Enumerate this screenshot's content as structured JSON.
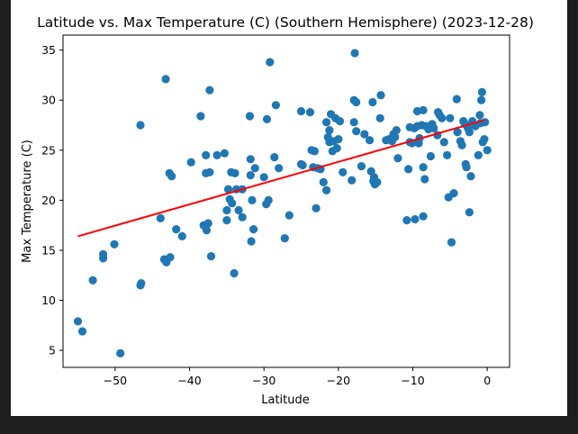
{
  "chart_data": {
    "type": "scatter",
    "title": "Latitude vs. Max Temperature (C) (Southern Hemisphere) (2023-12-28)",
    "xlabel": "Latitude",
    "ylabel": "Max Temperature (C)",
    "xlim": [
      -57,
      3
    ],
    "ylim": [
      3.3,
      36.5
    ],
    "xticks": [
      -50,
      -40,
      -30,
      -20,
      -10,
      0
    ],
    "xtick_labels": [
      "−50",
      "−40",
      "−30",
      "−20",
      "−10",
      "0"
    ],
    "yticks": [
      5,
      10,
      15,
      20,
      25,
      30,
      35
    ],
    "ytick_labels": [
      "5",
      "10",
      "15",
      "20",
      "25",
      "30",
      "35"
    ],
    "grid": false,
    "point_color": "#1f77b4",
    "regression_color": "#ff0000",
    "regression": {
      "x": [
        -55,
        -0.4
      ],
      "y": [
        16.4,
        28.0
      ]
    },
    "points": [
      [
        -55.0,
        7.9
      ],
      [
        -54.4,
        6.9
      ],
      [
        -53.0,
        12.0
      ],
      [
        -51.6,
        14.6
      ],
      [
        -51.6,
        14.2
      ],
      [
        -50.1,
        15.6
      ],
      [
        -49.3,
        4.7
      ],
      [
        -46.6,
        11.5
      ],
      [
        -46.5,
        11.7
      ],
      [
        -46.6,
        27.5
      ],
      [
        -43.9,
        18.2
      ],
      [
        -43.4,
        14.1
      ],
      [
        -43.1,
        13.8
      ],
      [
        -42.6,
        14.3
      ],
      [
        -42.7,
        22.7
      ],
      [
        -42.4,
        22.4
      ],
      [
        -43.2,
        32.1
      ],
      [
        -41.8,
        17.1
      ],
      [
        -41.0,
        16.4
      ],
      [
        -39.8,
        23.8
      ],
      [
        -38.5,
        28.4
      ],
      [
        -38.1,
        17.5
      ],
      [
        -37.7,
        17.0
      ],
      [
        -37.5,
        17.7
      ],
      [
        -37.8,
        22.7
      ],
      [
        -37.8,
        24.5
      ],
      [
        -37.3,
        22.8
      ],
      [
        -37.1,
        14.4
      ],
      [
        -37.3,
        31.0
      ],
      [
        -36.3,
        24.5
      ],
      [
        -35.3,
        24.7
      ],
      [
        -35.0,
        18.0
      ],
      [
        -35.0,
        19.0
      ],
      [
        -34.8,
        21.1
      ],
      [
        -34.6,
        20.1
      ],
      [
        -34.3,
        19.7
      ],
      [
        -34.4,
        22.8
      ],
      [
        -33.9,
        22.7
      ],
      [
        -33.7,
        21.1
      ],
      [
        -34.0,
        12.7
      ],
      [
        -33.4,
        19.0
      ],
      [
        -32.9,
        18.3
      ],
      [
        -32.9,
        21.1
      ],
      [
        -31.9,
        28.4
      ],
      [
        -31.8,
        22.5
      ],
      [
        -31.8,
        24.1
      ],
      [
        -31.7,
        15.9
      ],
      [
        -31.6,
        20.0
      ],
      [
        -31.4,
        17.1
      ],
      [
        -31.2,
        23.2
      ],
      [
        -30.0,
        22.3
      ],
      [
        -29.7,
        19.6
      ],
      [
        -29.4,
        20.0
      ],
      [
        -29.6,
        28.1
      ],
      [
        -29.2,
        33.8
      ],
      [
        -28.6,
        24.3
      ],
      [
        -28.4,
        29.5
      ],
      [
        -28.0,
        23.2
      ],
      [
        -27.2,
        16.2
      ],
      [
        -26.6,
        18.5
      ],
      [
        -25.0,
        28.9
      ],
      [
        -25.0,
        23.6
      ],
      [
        -24.8,
        23.5
      ],
      [
        -23.8,
        28.8
      ],
      [
        -23.6,
        25.0
      ],
      [
        -23.4,
        23.3
      ],
      [
        -23.2,
        24.9
      ],
      [
        -23.0,
        19.2
      ],
      [
        -22.8,
        23.2
      ],
      [
        -22.4,
        23.1
      ],
      [
        -22.0,
        21.8
      ],
      [
        -21.6,
        21.0
      ],
      [
        -21.6,
        27.8
      ],
      [
        -21.4,
        26.3
      ],
      [
        -21.2,
        25.8
      ],
      [
        -21.2,
        27.0
      ],
      [
        -21.0,
        28.6
      ],
      [
        -20.8,
        24.9
      ],
      [
        -20.6,
        25.9
      ],
      [
        -20.4,
        28.2
      ],
      [
        -20.2,
        25.2
      ],
      [
        -20.0,
        26.1
      ],
      [
        -19.8,
        27.9
      ],
      [
        -19.4,
        22.8
      ],
      [
        -18.2,
        22.0
      ],
      [
        -17.9,
        27.8
      ],
      [
        -17.9,
        30.0
      ],
      [
        -17.6,
        29.8
      ],
      [
        -17.8,
        34.7
      ],
      [
        -17.6,
        26.9
      ],
      [
        -16.9,
        23.4
      ],
      [
        -16.5,
        26.6
      ],
      [
        -15.8,
        26.0
      ],
      [
        -15.6,
        22.9
      ],
      [
        -15.4,
        29.8
      ],
      [
        -15.2,
        22.3
      ],
      [
        -15.3,
        21.9
      ],
      [
        -15.1,
        21.6
      ],
      [
        -14.8,
        21.8
      ],
      [
        -14.4,
        28.2
      ],
      [
        -14.3,
        30.5
      ],
      [
        -13.6,
        26.0
      ],
      [
        -13.2,
        26.1
      ],
      [
        -12.8,
        25.9
      ],
      [
        -12.6,
        26.6
      ],
      [
        -12.4,
        26.3
      ],
      [
        -12.2,
        27.0
      ],
      [
        -12.0,
        24.2
      ],
      [
        -10.8,
        18.0
      ],
      [
        -10.6,
        23.1
      ],
      [
        -10.4,
        27.3
      ],
      [
        -10.4,
        25.8
      ],
      [
        -10.1,
        25.7
      ],
      [
        -9.8,
        27.2
      ],
      [
        -9.7,
        18.1
      ],
      [
        -9.4,
        28.9
      ],
      [
        -9.4,
        27.4
      ],
      [
        -9.2,
        25.7
      ],
      [
        -9.1,
        26.2
      ],
      [
        -8.8,
        27.5
      ],
      [
        -8.6,
        18.4
      ],
      [
        -8.6,
        23.3
      ],
      [
        -8.4,
        22.1
      ],
      [
        -8.6,
        29.0
      ],
      [
        -8.2,
        27.4
      ],
      [
        -7.9,
        27.1
      ],
      [
        -7.6,
        24.4
      ],
      [
        -7.4,
        27.6
      ],
      [
        -7.2,
        27.2
      ],
      [
        -6.7,
        26.5
      ],
      [
        -6.6,
        28.8
      ],
      [
        -6.4,
        28.5
      ],
      [
        -6.1,
        28.2
      ],
      [
        -5.8,
        25.8
      ],
      [
        -5.4,
        24.5
      ],
      [
        -5.2,
        20.3
      ],
      [
        -5.0,
        28.2
      ],
      [
        -4.8,
        15.8
      ],
      [
        -4.5,
        20.7
      ],
      [
        -4.1,
        30.1
      ],
      [
        -4.0,
        26.8
      ],
      [
        -3.6,
        25.9
      ],
      [
        -3.4,
        25.5
      ],
      [
        -3.2,
        27.9
      ],
      [
        -3.0,
        27.6
      ],
      [
        -2.9,
        23.6
      ],
      [
        -2.8,
        23.3
      ],
      [
        -2.6,
        27.2
      ],
      [
        -2.4,
        26.8
      ],
      [
        -2.4,
        18.8
      ],
      [
        -2.2,
        22.4
      ],
      [
        -2.0,
        27.9
      ],
      [
        -1.6,
        27.4
      ],
      [
        -1.2,
        24.5
      ],
      [
        -1.0,
        28.5
      ],
      [
        -0.9,
        27.7
      ],
      [
        -0.8,
        30.0
      ],
      [
        -0.7,
        30.8
      ],
      [
        -0.6,
        25.8
      ],
      [
        -0.4,
        26.1
      ],
      [
        -0.3,
        27.8
      ],
      [
        0.0,
        25.0
      ]
    ]
  }
}
